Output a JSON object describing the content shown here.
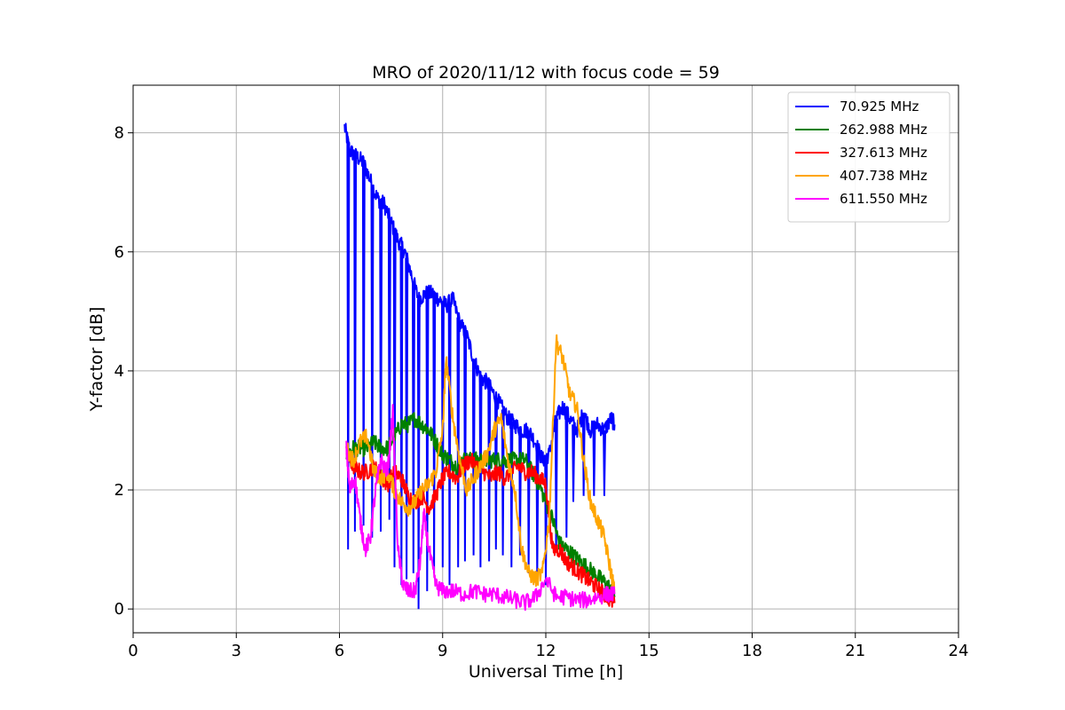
{
  "chart_data": {
    "type": "line",
    "title": "MRO of 2020/11/12 with focus code = 59",
    "xlabel": "Universal Time [h]",
    "ylabel": "Y-factor [dB]",
    "xlim": [
      0,
      24
    ],
    "ylim": [
      -0.4,
      8.8
    ],
    "xticks": [
      0,
      3,
      6,
      9,
      12,
      15,
      18,
      21,
      24
    ],
    "xtick_labels": [
      "0",
      "3",
      "6",
      "9",
      "12",
      "15",
      "18",
      "21",
      "24"
    ],
    "yticks": [
      0,
      2,
      4,
      6,
      8
    ],
    "ytick_labels": [
      "0",
      "2",
      "4",
      "6",
      "8"
    ],
    "grid": true,
    "legend_position": "top-right",
    "series": [
      {
        "name": "70.925 MHz",
        "color": "#0000ff",
        "x": [
          6.15,
          6.3,
          6.5,
          6.7,
          6.9,
          7.1,
          7.3,
          7.5,
          7.7,
          7.9,
          8.1,
          8.3,
          8.5,
          8.7,
          8.9,
          9.1,
          9.3,
          9.5,
          9.7,
          9.9,
          10.1,
          10.3,
          10.5,
          10.7,
          10.9,
          11.1,
          11.3,
          11.5,
          11.7,
          11.9,
          12.1,
          12.3,
          12.5,
          12.7,
          12.9,
          13.1,
          13.3,
          13.5,
          13.7,
          13.9,
          14.0
        ],
        "y": [
          8.1,
          7.7,
          7.6,
          7.5,
          7.2,
          6.9,
          6.8,
          6.5,
          6.2,
          6.0,
          5.6,
          5.2,
          5.3,
          5.3,
          5.2,
          5.1,
          5.2,
          4.8,
          4.6,
          4.2,
          3.9,
          3.8,
          3.6,
          3.4,
          3.2,
          3.1,
          3.0,
          3.0,
          2.8,
          2.5,
          2.6,
          3.2,
          3.4,
          3.2,
          3.0,
          3.3,
          3.0,
          3.1,
          3.0,
          3.2,
          3.1
        ],
        "dips": [
          [
            6.25,
            1.0
          ],
          [
            6.45,
            1.3
          ],
          [
            6.7,
            1.4
          ],
          [
            6.95,
            1.2
          ],
          [
            7.2,
            1.3
          ],
          [
            7.45,
            1.5
          ],
          [
            7.6,
            0.7
          ],
          [
            7.8,
            0.4
          ],
          [
            7.95,
            0.5
          ],
          [
            8.15,
            0.6
          ],
          [
            8.3,
            0.0
          ],
          [
            8.55,
            0.3
          ],
          [
            8.75,
            0.6
          ],
          [
            9.0,
            0.7
          ],
          [
            9.2,
            0.4
          ],
          [
            9.45,
            0.7
          ],
          [
            9.65,
            0.8
          ],
          [
            9.9,
            0.9
          ],
          [
            10.1,
            0.7
          ],
          [
            10.35,
            0.8
          ],
          [
            10.55,
            1.0
          ],
          [
            10.75,
            0.9
          ],
          [
            11.0,
            0.7
          ],
          [
            11.25,
            0.9
          ],
          [
            11.5,
            0.6
          ],
          [
            11.75,
            0.5
          ],
          [
            12.0,
            0.4
          ],
          [
            12.3,
            1.0
          ],
          [
            12.6,
            1.2
          ],
          [
            12.8,
            1.8
          ],
          [
            13.1,
            1.9
          ],
          [
            13.4,
            1.9
          ],
          [
            13.7,
            1.9
          ]
        ]
      },
      {
        "name": "262.988 MHz",
        "color": "#008000",
        "x": [
          6.2,
          6.4,
          6.6,
          6.8,
          7.0,
          7.2,
          7.4,
          7.6,
          7.8,
          8.0,
          8.2,
          8.4,
          8.6,
          8.8,
          9.0,
          9.2,
          9.4,
          9.6,
          9.8,
          10.0,
          10.2,
          10.4,
          10.6,
          10.8,
          11.0,
          11.2,
          11.4,
          11.6,
          11.8,
          12.0,
          12.2,
          12.4,
          12.6,
          12.8,
          13.0,
          13.2,
          13.4,
          13.6,
          13.8,
          14.0
        ],
        "y": [
          2.6,
          2.7,
          2.7,
          2.7,
          2.8,
          2.7,
          2.7,
          2.9,
          3.1,
          3.1,
          3.2,
          3.1,
          3.0,
          2.8,
          2.6,
          2.5,
          2.4,
          2.5,
          2.5,
          2.5,
          2.5,
          2.5,
          2.5,
          2.5,
          2.5,
          2.5,
          2.5,
          2.3,
          2.1,
          1.8,
          1.5,
          1.1,
          1.0,
          0.9,
          0.8,
          0.7,
          0.6,
          0.5,
          0.4,
          0.2
        ]
      },
      {
        "name": "327.613 MHz",
        "color": "#ff0000",
        "x": [
          6.2,
          6.4,
          6.6,
          6.8,
          7.0,
          7.2,
          7.4,
          7.6,
          7.8,
          8.0,
          8.2,
          8.4,
          8.6,
          8.8,
          9.0,
          9.2,
          9.4,
          9.6,
          9.8,
          10.0,
          10.2,
          10.4,
          10.6,
          10.8,
          11.0,
          11.2,
          11.4,
          11.6,
          11.8,
          12.0,
          12.2,
          12.4,
          12.6,
          12.8,
          13.0,
          13.2,
          13.4,
          13.6,
          13.8,
          14.0
        ],
        "y": [
          2.6,
          2.4,
          2.3,
          2.3,
          2.4,
          2.2,
          2.1,
          2.3,
          2.2,
          1.9,
          1.8,
          1.9,
          1.7,
          1.9,
          2.2,
          2.3,
          2.2,
          2.4,
          2.5,
          2.4,
          2.3,
          2.2,
          2.3,
          2.2,
          2.3,
          2.4,
          2.3,
          2.3,
          2.2,
          2.1,
          1.0,
          1.0,
          0.8,
          0.7,
          0.6,
          0.5,
          0.4,
          0.3,
          0.2,
          0.1
        ]
      },
      {
        "name": "407.738 MHz",
        "color": "#ffa500",
        "x": [
          6.2,
          6.4,
          6.6,
          6.8,
          7.0,
          7.2,
          7.4,
          7.6,
          7.8,
          8.0,
          8.2,
          8.4,
          8.6,
          8.8,
          9.0,
          9.1,
          9.3,
          9.5,
          9.7,
          9.9,
          10.1,
          10.3,
          10.5,
          10.7,
          10.9,
          11.1,
          11.3,
          11.5,
          11.7,
          11.9,
          12.1,
          12.3,
          12.5,
          12.7,
          12.9,
          13.1,
          13.3,
          13.5,
          13.7,
          13.9,
          14.0
        ],
        "y": [
          2.7,
          2.5,
          2.8,
          2.9,
          2.3,
          2.2,
          2.3,
          2.0,
          1.8,
          1.7,
          1.8,
          2.0,
          2.1,
          2.3,
          3.0,
          4.2,
          3.2,
          2.5,
          2.0,
          2.2,
          2.4,
          2.6,
          3.0,
          3.2,
          2.5,
          2.0,
          1.0,
          0.6,
          0.5,
          0.6,
          1.5,
          4.5,
          4.2,
          3.6,
          3.4,
          2.5,
          1.8,
          1.5,
          1.2,
          0.6,
          0.3
        ]
      },
      {
        "name": "611.550 MHz",
        "color": "#ff00ff",
        "x": [
          6.2,
          6.3,
          6.45,
          6.6,
          6.75,
          6.9,
          7.05,
          7.2,
          7.4,
          7.55,
          7.7,
          7.85,
          8.0,
          8.2,
          8.35,
          8.45,
          8.6,
          8.8,
          9.0,
          9.3,
          9.6,
          9.9,
          10.2,
          10.5,
          10.8,
          11.1,
          11.4,
          11.7,
          12.0,
          12.3,
          12.6,
          12.9,
          13.2,
          13.5,
          13.8,
          14.0
        ],
        "y": [
          2.7,
          2.0,
          2.2,
          1.5,
          1.0,
          1.2,
          2.0,
          2.5,
          2.3,
          3.3,
          1.0,
          0.4,
          0.3,
          0.3,
          0.8,
          1.6,
          1.0,
          0.4,
          0.3,
          0.3,
          0.25,
          0.3,
          0.25,
          0.25,
          0.2,
          0.15,
          0.1,
          0.2,
          0.5,
          0.2,
          0.2,
          0.15,
          0.15,
          0.2,
          0.25,
          0.25
        ]
      }
    ]
  }
}
